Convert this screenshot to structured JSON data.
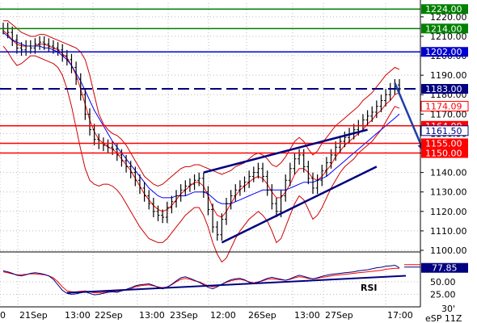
{
  "chart_data": {
    "type": "candlestick",
    "symbol": "eSP 11Z",
    "timeframe": "30'",
    "price_axis": {
      "range": [
        1100,
        1227
      ],
      "ticks": [
        1220.0,
        1210.0,
        1200.0,
        1190.0,
        1180.0,
        1170.0,
        1160.0,
        1150.0,
        1140.0,
        1130.0,
        1120.0,
        1110.0,
        1100.0
      ],
      "tick_labels": [
        "1220.00",
        "1210.00",
        "1200.00",
        "1190.00",
        "1180.00",
        "1170.00",
        "1160.00",
        "1150.00",
        "1140.00",
        "1130.00",
        "1120.00",
        "1110.00",
        "1100.00"
      ]
    },
    "rsi_axis": {
      "range": [
        0,
        100
      ],
      "ticks": [
        50,
        25
      ],
      "tick_labels": [
        "50.00",
        "25.00"
      ]
    },
    "x_tick_labels": [
      "0",
      "21Sep",
      "13:00",
      "22Sep",
      "13:00",
      "23Sep",
      "12:00",
      "26Sep",
      "13:00",
      "27Sep",
      "17:00"
    ],
    "levels": [
      {
        "value": 1224.0,
        "label": "1224.00",
        "color": "#008000",
        "style": "solid"
      },
      {
        "value": 1214.0,
        "label": "1214.00",
        "color": "#008000",
        "style": "solid"
      },
      {
        "value": 1202.0,
        "label": "1202.00",
        "color": "#0000cc",
        "style": "solid"
      },
      {
        "value": 1183.0,
        "label": "1183.00",
        "color": "#000080",
        "style": "dashed"
      },
      {
        "value": 1164.0,
        "label": "1164.00",
        "color": "#ff0000",
        "style": "solid"
      },
      {
        "value": 1155.0,
        "label": "1155.00",
        "color": "#ff0000",
        "style": "solid"
      },
      {
        "value": 1150.0,
        "label": "1150.00",
        "color": "#ff0000",
        "style": "solid"
      }
    ],
    "indicator_tags": [
      {
        "value": 1174.09,
        "label": "1174.09",
        "color": "#ff0000"
      },
      {
        "value": 1161.5,
        "label": "1161.50",
        "color": "#000080"
      }
    ],
    "price_series": [
      1214,
      1212,
      1208,
      1204,
      1203,
      1205,
      1204,
      1206,
      1207,
      1206,
      1205,
      1204,
      1203,
      1200,
      1198,
      1194,
      1188,
      1180,
      1170,
      1162,
      1157,
      1155,
      1154,
      1153,
      1152,
      1149,
      1146,
      1143,
      1140,
      1136,
      1132,
      1128,
      1124,
      1120,
      1118,
      1117,
      1122,
      1125,
      1128,
      1131,
      1133,
      1134,
      1136,
      1137,
      1130,
      1121,
      1112,
      1108,
      1116,
      1124,
      1128,
      1131,
      1133,
      1135,
      1138,
      1140,
      1142,
      1138,
      1131,
      1124,
      1120,
      1128,
      1136,
      1142,
      1147,
      1149,
      1143,
      1137,
      1132,
      1136,
      1141,
      1145,
      1149,
      1153,
      1156,
      1158,
      1160,
      1162,
      1164,
      1167,
      1169,
      1171,
      1174,
      1177,
      1180,
      1183,
      1185,
      1183
    ],
    "ma_blue": [
      1212,
      1210,
      1208,
      1207,
      1206,
      1205,
      1205,
      1205,
      1205,
      1204,
      1204,
      1203,
      1202,
      1200,
      1198,
      1195,
      1191,
      1187,
      1182,
      1177,
      1172,
      1168,
      1164,
      1160,
      1156,
      1153,
      1150,
      1147,
      1144,
      1141,
      1138,
      1135,
      1132,
      1130,
      1128,
      1127,
      1127,
      1127,
      1128,
      1128,
      1128,
      1129,
      1130,
      1130,
      1130,
      1129,
      1127,
      1125,
      1124,
      1124,
      1124,
      1125,
      1126,
      1127,
      1128,
      1129,
      1130,
      1131,
      1131,
      1131,
      1131,
      1131,
      1131,
      1132,
      1133,
      1134,
      1135,
      1135,
      1135,
      1136,
      1137,
      1138,
      1140,
      1142,
      1144,
      1146,
      1148,
      1150,
      1152,
      1154,
      1156,
      1158,
      1160,
      1162,
      1164,
      1166,
      1168,
      1170
    ],
    "ma_red": [
      1213,
      1211,
      1208,
      1206,
      1205,
      1205,
      1205,
      1205,
      1206,
      1206,
      1205,
      1204,
      1203,
      1201,
      1199,
      1195,
      1190,
      1183,
      1175,
      1167,
      1161,
      1157,
      1155,
      1153,
      1152,
      1150,
      1147,
      1144,
      1141,
      1137,
      1133,
      1129,
      1126,
      1123,
      1121,
      1120,
      1121,
      1123,
      1126,
      1129,
      1131,
      1133,
      1135,
      1135,
      1133,
      1128,
      1122,
      1118,
      1117,
      1120,
      1124,
      1128,
      1131,
      1133,
      1135,
      1137,
      1138,
      1137,
      1134,
      1130,
      1127,
      1127,
      1130,
      1134,
      1139,
      1142,
      1142,
      1140,
      1137,
      1136,
      1138,
      1141,
      1144,
      1148,
      1151,
      1154,
      1156,
      1158,
      1160,
      1162,
      1165,
      1167,
      1170,
      1172,
      1175,
      1177,
      1180,
      1181
    ],
    "band_upper": [
      1218,
      1218,
      1216,
      1214,
      1212,
      1211,
      1210,
      1210,
      1211,
      1211,
      1210,
      1209,
      1208,
      1207,
      1206,
      1205,
      1204,
      1202,
      1198,
      1190,
      1180,
      1170,
      1165,
      1162,
      1160,
      1159,
      1157,
      1154,
      1150,
      1146,
      1142,
      1138,
      1136,
      1134,
      1133,
      1134,
      1136,
      1138,
      1140,
      1142,
      1143,
      1143,
      1144,
      1144,
      1143,
      1142,
      1141,
      1140,
      1139,
      1140,
      1141,
      1143,
      1144,
      1145,
      1147,
      1149,
      1150,
      1149,
      1147,
      1144,
      1143,
      1145,
      1148,
      1152,
      1156,
      1158,
      1156,
      1152,
      1149,
      1151,
      1155,
      1158,
      1161,
      1164,
      1166,
      1168,
      1170,
      1172,
      1174,
      1177,
      1179,
      1181,
      1184,
      1187,
      1190,
      1192,
      1194,
      1193
    ],
    "band_lower": [
      1205,
      1202,
      1198,
      1195,
      1196,
      1198,
      1200,
      1200,
      1199,
      1198,
      1197,
      1196,
      1194,
      1190,
      1183,
      1174,
      1163,
      1152,
      1142,
      1136,
      1134,
      1133,
      1134,
      1134,
      1133,
      1131,
      1128,
      1124,
      1120,
      1116,
      1112,
      1109,
      1106,
      1105,
      1104,
      1104,
      1106,
      1109,
      1112,
      1115,
      1118,
      1120,
      1122,
      1122,
      1118,
      1112,
      1104,
      1098,
      1094,
      1096,
      1101,
      1106,
      1110,
      1113,
      1116,
      1118,
      1120,
      1118,
      1115,
      1110,
      1104,
      1106,
      1112,
      1118,
      1124,
      1128,
      1126,
      1121,
      1116,
      1118,
      1122,
      1127,
      1132,
      1136,
      1140,
      1143,
      1145,
      1147,
      1150,
      1152,
      1154,
      1156,
      1159,
      1162,
      1166,
      1170,
      1174,
      1173
    ],
    "rsi_red": [
      70,
      68,
      66,
      64,
      64,
      65,
      66,
      66,
      65,
      64,
      62,
      58,
      50,
      40,
      32,
      30,
      30,
      31,
      32,
      30,
      28,
      28,
      29,
      30,
      31,
      30,
      32,
      34,
      36,
      40,
      42,
      43,
      44,
      42,
      40,
      38,
      40,
      44,
      50,
      55,
      57,
      55,
      52,
      50,
      46,
      42,
      40,
      42,
      45,
      49,
      52,
      54,
      55,
      53,
      50,
      48,
      50,
      52,
      55,
      56,
      55,
      54,
      53,
      55,
      58,
      60,
      59,
      57,
      56,
      57,
      59,
      60,
      62,
      63,
      64,
      65,
      66,
      67,
      68,
      69,
      70,
      71,
      72,
      73,
      75,
      76,
      77,
      77
    ],
    "rsi_blue": [
      72,
      70,
      67,
      63,
      62,
      64,
      67,
      68,
      67,
      65,
      62,
      55,
      44,
      33,
      27,
      25,
      26,
      28,
      30,
      27,
      24,
      25,
      27,
      29,
      30,
      29,
      32,
      35,
      38,
      42,
      44,
      45,
      46,
      43,
      39,
      36,
      39,
      45,
      52,
      58,
      60,
      57,
      53,
      49,
      44,
      39,
      36,
      40,
      45,
      50,
      54,
      56,
      57,
      54,
      49,
      46,
      49,
      53,
      57,
      59,
      57,
      55,
      53,
      56,
      60,
      63,
      61,
      58,
      56,
      58,
      61,
      63,
      65,
      66,
      67,
      68,
      69,
      70,
      72,
      73,
      74,
      76,
      78,
      79,
      81,
      82,
      83,
      78
    ],
    "rsi_label": "RSI",
    "rsi_value_tag": {
      "value": 77.85,
      "label": "77.85"
    },
    "rsi_trendline": {
      "from": {
        "index": 14,
        "value": 28
      },
      "to": {
        "index": 88,
        "value": 62
      }
    },
    "trendlines": [
      {
        "name": "channel-upper",
        "from": {
          "index": 44,
          "value": 1140
        },
        "to": {
          "index": 80,
          "value": 1162
        }
      },
      {
        "name": "channel-lower",
        "from": {
          "index": 48,
          "value": 1104
        },
        "to": {
          "index": 82,
          "value": 1143
        }
      }
    ],
    "projection_arrow": {
      "from": {
        "index": 86,
        "value": 1186
      },
      "to": {
        "index": 89,
        "value": 1151
      }
    },
    "colors": {
      "price": "#000000",
      "ma_blue": "#0000ff",
      "ma_red": "#ff0000",
      "bands": "#cc0000",
      "trendline": "#000080",
      "rsi_red": "#ff0000",
      "rsi_blue": "#000080",
      "grid": "#bbbbbb"
    },
    "grid": "dotted"
  }
}
